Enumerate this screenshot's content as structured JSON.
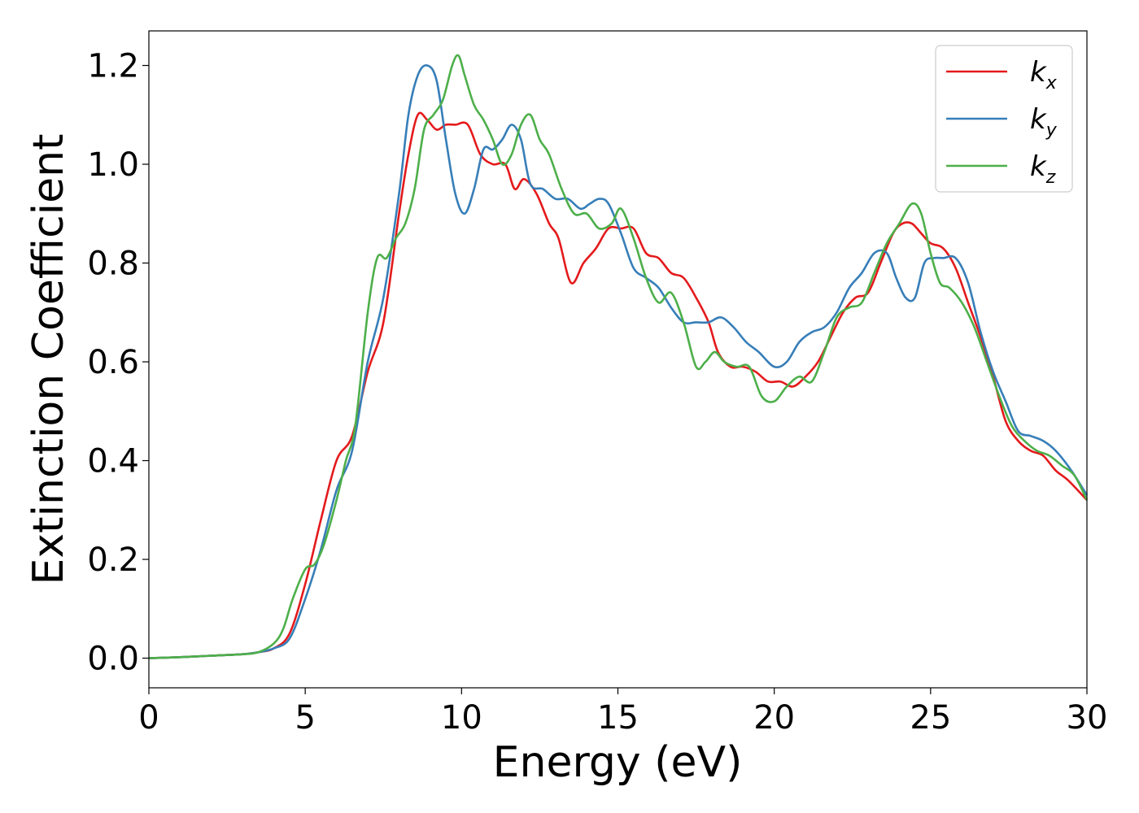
{
  "chart_data": {
    "type": "line",
    "xlabel": "Energy (eV)",
    "ylabel": "Extinction Coefficient",
    "xlim": [
      0,
      30
    ],
    "ylim": [
      -0.06,
      1.27
    ],
    "xticks": [
      0,
      5,
      10,
      15,
      20,
      25,
      30
    ],
    "xtick_labels": [
      "0",
      "5",
      "10",
      "15",
      "20",
      "25",
      "30"
    ],
    "yticks": [
      0.0,
      0.2,
      0.4,
      0.6,
      0.8,
      1.0,
      1.2
    ],
    "ytick_labels": [
      "0.0",
      "0.2",
      "0.4",
      "0.6",
      "0.8",
      "1.0",
      "1.2"
    ],
    "grid": false,
    "legend_position": "top-right",
    "series": [
      {
        "name": "k",
        "subscript": "x",
        "color": "#e41a1c",
        "x": [
          0,
          1,
          2,
          3,
          3.5,
          4,
          4.5,
          5,
          5.5,
          6,
          6.5,
          7,
          7.5,
          8,
          8.3,
          8.6,
          8.9,
          9.2,
          9.5,
          9.8,
          10.2,
          10.6,
          11,
          11.4,
          11.7,
          12,
          12.4,
          12.8,
          13.1,
          13.5,
          13.9,
          14.3,
          14.7,
          15.1,
          15.5,
          15.9,
          16.3,
          16.7,
          17.1,
          17.5,
          17.9,
          18.2,
          18.6,
          19,
          19.4,
          19.8,
          20.2,
          20.6,
          21,
          21.4,
          21.8,
          22.2,
          22.6,
          23,
          23.4,
          23.8,
          24.1,
          24.4,
          24.7,
          25,
          25.4,
          25.8,
          26.2,
          26.6,
          27,
          27.4,
          27.8,
          28.2,
          28.6,
          29,
          29.4,
          30
        ],
        "y": [
          0.0,
          0.002,
          0.005,
          0.008,
          0.012,
          0.02,
          0.05,
          0.15,
          0.28,
          0.4,
          0.45,
          0.58,
          0.68,
          0.9,
          1.02,
          1.1,
          1.09,
          1.07,
          1.08,
          1.08,
          1.08,
          1.02,
          1.0,
          1.0,
          0.95,
          0.97,
          0.94,
          0.88,
          0.85,
          0.76,
          0.8,
          0.83,
          0.87,
          0.87,
          0.87,
          0.82,
          0.81,
          0.78,
          0.77,
          0.73,
          0.68,
          0.62,
          0.59,
          0.59,
          0.58,
          0.56,
          0.56,
          0.55,
          0.57,
          0.6,
          0.65,
          0.7,
          0.73,
          0.74,
          0.8,
          0.86,
          0.88,
          0.88,
          0.86,
          0.84,
          0.83,
          0.79,
          0.72,
          0.65,
          0.57,
          0.48,
          0.44,
          0.42,
          0.41,
          0.38,
          0.36,
          0.32
        ]
      },
      {
        "name": "k",
        "subscript": "y",
        "color": "#377eb8",
        "x": [
          0,
          1,
          2,
          3,
          3.5,
          4,
          4.5,
          5,
          5.5,
          6,
          6.5,
          7,
          7.5,
          8,
          8.3,
          8.6,
          8.9,
          9.2,
          9.5,
          9.8,
          10.1,
          10.4,
          10.7,
          11,
          11.3,
          11.6,
          11.9,
          12.2,
          12.6,
          13,
          13.4,
          13.8,
          14.1,
          14.4,
          14.7,
          15.1,
          15.5,
          15.9,
          16.3,
          16.7,
          17.1,
          17.5,
          17.9,
          18.3,
          18.7,
          19.1,
          19.5,
          20,
          20.4,
          20.8,
          21.2,
          21.6,
          22,
          22.4,
          22.8,
          23.2,
          23.6,
          23.9,
          24.2,
          24.5,
          24.8,
          25.1,
          25.4,
          25.8,
          26.2,
          26.6,
          27,
          27.4,
          27.8,
          28.2,
          28.6,
          29,
          29.5,
          30
        ],
        "y": [
          0.0,
          0.002,
          0.005,
          0.008,
          0.012,
          0.02,
          0.04,
          0.12,
          0.22,
          0.34,
          0.42,
          0.6,
          0.73,
          0.94,
          1.1,
          1.18,
          1.2,
          1.17,
          1.05,
          0.94,
          0.9,
          0.95,
          1.03,
          1.03,
          1.05,
          1.08,
          1.05,
          0.96,
          0.95,
          0.93,
          0.93,
          0.91,
          0.92,
          0.93,
          0.92,
          0.86,
          0.79,
          0.77,
          0.75,
          0.71,
          0.68,
          0.68,
          0.68,
          0.69,
          0.67,
          0.64,
          0.62,
          0.59,
          0.6,
          0.64,
          0.66,
          0.67,
          0.7,
          0.75,
          0.78,
          0.82,
          0.82,
          0.77,
          0.73,
          0.73,
          0.8,
          0.81,
          0.81,
          0.81,
          0.76,
          0.66,
          0.58,
          0.52,
          0.46,
          0.45,
          0.44,
          0.42,
          0.38,
          0.33
        ]
      },
      {
        "name": "k",
        "subscript": "z",
        "color": "#4daf4a",
        "x": [
          0,
          1,
          2,
          3,
          3.5,
          4,
          4.3,
          4.6,
          5,
          5.3,
          5.6,
          6,
          6.3,
          6.6,
          7,
          7.3,
          7.6,
          7.9,
          8.2,
          8.5,
          8.8,
          9.1,
          9.4,
          9.7,
          9.9,
          10.1,
          10.4,
          10.7,
          11,
          11.3,
          11.6,
          11.9,
          12.2,
          12.5,
          12.8,
          13.2,
          13.6,
          14,
          14.4,
          14.8,
          15.1,
          15.5,
          15.9,
          16.3,
          16.7,
          17.1,
          17.5,
          17.8,
          18.1,
          18.4,
          18.8,
          19.2,
          19.6,
          20,
          20.4,
          20.8,
          21.2,
          21.6,
          22,
          22.4,
          22.8,
          23.2,
          23.6,
          24,
          24.4,
          24.7,
          25,
          25.3,
          25.6,
          26,
          26.4,
          26.8,
          27.2,
          27.6,
          28,
          28.4,
          28.8,
          29.2,
          29.6,
          30
        ],
        "y": [
          0.0,
          0.002,
          0.005,
          0.008,
          0.012,
          0.03,
          0.06,
          0.12,
          0.18,
          0.19,
          0.23,
          0.32,
          0.4,
          0.47,
          0.7,
          0.81,
          0.81,
          0.85,
          0.88,
          0.95,
          1.07,
          1.1,
          1.13,
          1.2,
          1.22,
          1.18,
          1.12,
          1.09,
          1.05,
          1.0,
          1.02,
          1.08,
          1.1,
          1.05,
          1.02,
          0.95,
          0.9,
          0.9,
          0.87,
          0.88,
          0.91,
          0.85,
          0.77,
          0.72,
          0.74,
          0.68,
          0.59,
          0.6,
          0.62,
          0.6,
          0.59,
          0.59,
          0.53,
          0.52,
          0.55,
          0.57,
          0.56,
          0.62,
          0.69,
          0.71,
          0.72,
          0.78,
          0.84,
          0.88,
          0.92,
          0.9,
          0.82,
          0.76,
          0.75,
          0.72,
          0.67,
          0.6,
          0.53,
          0.47,
          0.44,
          0.42,
          0.41,
          0.39,
          0.37,
          0.32
        ]
      }
    ]
  }
}
